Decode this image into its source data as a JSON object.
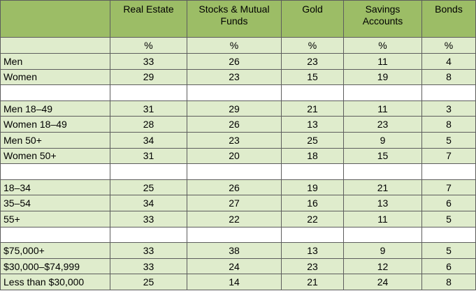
{
  "columns": [
    "",
    "Real Estate",
    "Stocks & Mutual Funds",
    "Gold",
    "Savings Accounts",
    "Bonds"
  ],
  "units": [
    "",
    "%",
    "%",
    "%",
    "%",
    "%"
  ],
  "rows": [
    {
      "label": "Men",
      "values": [
        "33",
        "26",
        "23",
        "11",
        "4"
      ]
    },
    {
      "label": "Women",
      "values": [
        "29",
        "23",
        "15",
        "19",
        "8"
      ]
    },
    {
      "label": "",
      "values": [
        "",
        "",
        "",
        "",
        ""
      ]
    },
    {
      "label": "Men 18–49",
      "values": [
        "31",
        "29",
        "21",
        "11",
        "3"
      ]
    },
    {
      "label": "Women 18–49",
      "values": [
        "28",
        "26",
        "13",
        "23",
        "8"
      ]
    },
    {
      "label": "Men 50+",
      "values": [
        "34",
        "23",
        "25",
        "9",
        "5"
      ]
    },
    {
      "label": "Women 50+",
      "values": [
        "31",
        "20",
        "18",
        "15",
        "7"
      ]
    },
    {
      "label": "",
      "values": [
        "",
        "",
        "",
        "",
        ""
      ]
    },
    {
      "label": "18–34",
      "values": [
        "25",
        "26",
        "19",
        "21",
        "7"
      ]
    },
    {
      "label": "35–54",
      "values": [
        "34",
        "27",
        "16",
        "13",
        "6"
      ]
    },
    {
      "label": "55+",
      "values": [
        "33",
        "22",
        "22",
        "11",
        "5"
      ]
    },
    {
      "label": "",
      "values": [
        "",
        "",
        "",
        "",
        ""
      ]
    },
    {
      "label": "$75,000+",
      "values": [
        "33",
        "38",
        "13",
        "9",
        "5"
      ]
    },
    {
      "label": "$30,000–$74,999",
      "values": [
        "33",
        "24",
        "23",
        "12",
        "6"
      ]
    },
    {
      "label": "Less than $30,000",
      "values": [
        "25",
        "14",
        "21",
        "24",
        "8"
      ]
    }
  ],
  "colors": {
    "header_bg": "#9cbd66",
    "row_bg": "#dfeccc",
    "spacer_bg": "#ffffff",
    "border": "#5d5d5d"
  }
}
